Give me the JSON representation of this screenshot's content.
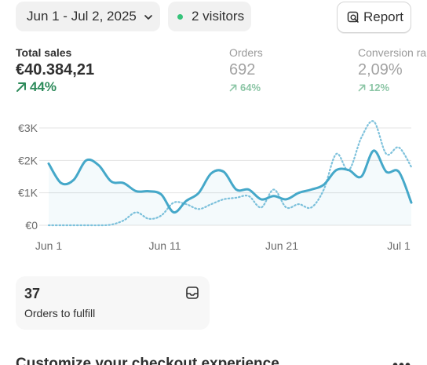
{
  "toolbar": {
    "date_range": "Jun 1 - Jul 2, 2025",
    "visitors": "2 visitors",
    "visitors_dot_color": "#36c37a",
    "report_label": "Report"
  },
  "metrics": [
    {
      "label": "Total sales",
      "value": "€40.384,21",
      "change": "44%"
    },
    {
      "label": "Orders",
      "value": "692",
      "change": "64%"
    },
    {
      "label": "Conversion ra",
      "value": "2,09%",
      "change": "12%"
    }
  ],
  "chart_data": {
    "type": "line",
    "x_ticks": [
      "Jun 1",
      "Jun 11",
      "Jun 21",
      "Jul 1"
    ],
    "y_ticks": [
      "€0",
      "€1K",
      "€2K",
      "€3K"
    ],
    "ylim": [
      0,
      3000
    ],
    "grid": true,
    "series": [
      {
        "style": "solid",
        "color": "#45a8c9",
        "values": [
          1900,
          1300,
          1400,
          2000,
          1850,
          1350,
          1300,
          1050,
          1050,
          950,
          400,
          750,
          1000,
          1600,
          1650,
          1100,
          1100,
          800,
          900,
          800,
          1000,
          1100,
          1250,
          1700,
          1700,
          1500,
          2300,
          1650,
          1650,
          700
        ]
      },
      {
        "style": "dotted",
        "color": "#7fc2dc",
        "values": [
          0,
          0,
          0,
          0,
          0,
          20,
          150,
          400,
          200,
          300,
          700,
          650,
          500,
          650,
          800,
          850,
          900,
          550,
          1100,
          550,
          650,
          550,
          1100,
          2200,
          1700,
          2700,
          3200,
          2200,
          2400,
          1800
        ]
      }
    ]
  },
  "orders_card": {
    "count": "37",
    "label": "Orders to fulfill"
  },
  "section": {
    "title": "Customize your checkout experience",
    "more": "•••"
  }
}
